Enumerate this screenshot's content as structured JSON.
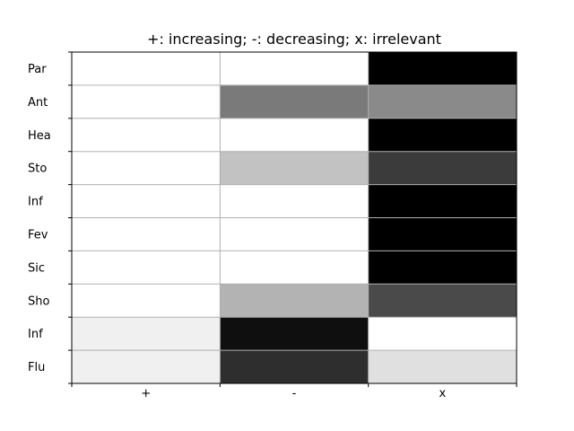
{
  "chart_data": {
    "type": "heatmap",
    "title": "+: increasing; -: decreasing; x: irrelevant",
    "xlabel": "",
    "ylabel": "",
    "x_categories": [
      "+",
      "-",
      "x"
    ],
    "y_categories": [
      "Par",
      "Ant",
      "Hea",
      "Sto",
      "Inf",
      "Fev",
      "Sic",
      "Sho",
      "Inf",
      "Flu"
    ],
    "values": [
      [
        0.0,
        0.0,
        1.0
      ],
      [
        0.0,
        0.52,
        0.46
      ],
      [
        0.0,
        0.0,
        1.0
      ],
      [
        0.0,
        0.24,
        0.77
      ],
      [
        0.0,
        0.0,
        1.0
      ],
      [
        0.0,
        0.0,
        1.0
      ],
      [
        0.0,
        0.0,
        1.0
      ],
      [
        0.0,
        0.3,
        0.71
      ],
      [
        0.06,
        0.94,
        0.0
      ],
      [
        0.06,
        0.82,
        0.12
      ]
    ],
    "colormap": "gray_r",
    "value_range": [
      0,
      1
    ],
    "grid": true,
    "grid_color": "#b0b0b0",
    "legend": "none"
  }
}
